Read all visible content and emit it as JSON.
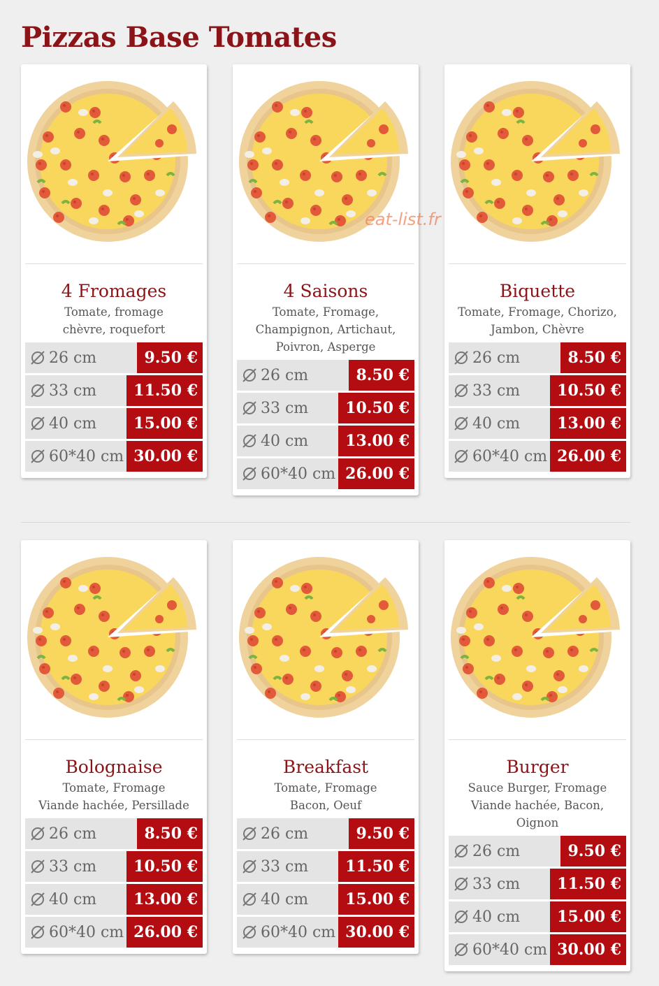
{
  "title": "Pizzas Base Tomates",
  "watermark": "eat-list.fr",
  "pizzas": [
    {
      "name": "4 Fromages",
      "description": [
        "Tomate, fromage",
        "chèvre, roquefort"
      ],
      "sizes": [
        {
          "size": "26 cm",
          "price": "9.50 €"
        },
        {
          "size": "33 cm",
          "price": "11.50 €"
        },
        {
          "size": "40 cm",
          "price": "15.00 €"
        },
        {
          "size": "60*40 cm",
          "price": "30.00 €"
        }
      ]
    },
    {
      "name": "4 Saisons",
      "description": [
        "Tomate, Fromage,",
        "Champignon, Artichaut,",
        "Poivron, Asperge"
      ],
      "sizes": [
        {
          "size": "26 cm",
          "price": "8.50 €"
        },
        {
          "size": "33 cm",
          "price": "10.50 €"
        },
        {
          "size": "40 cm",
          "price": "13.00 €"
        },
        {
          "size": "60*40 cm",
          "price": "26.00 €"
        }
      ]
    },
    {
      "name": "Biquette",
      "description": [
        "Tomate, Fromage, Chorizo,",
        "Jambon, Chèvre"
      ],
      "sizes": [
        {
          "size": "26 cm",
          "price": "8.50 €"
        },
        {
          "size": "33 cm",
          "price": "10.50 €"
        },
        {
          "size": "40 cm",
          "price": "13.00 €"
        },
        {
          "size": "60*40 cm",
          "price": "26.00 €"
        }
      ]
    },
    {
      "name": "Bolognaise",
      "description": [
        "Tomate, Fromage",
        "Viande hachée, Persillade"
      ],
      "sizes": [
        {
          "size": "26 cm",
          "price": "8.50 €"
        },
        {
          "size": "33 cm",
          "price": "10.50 €"
        },
        {
          "size": "40 cm",
          "price": "13.00 €"
        },
        {
          "size": "60*40 cm",
          "price": "26.00 €"
        }
      ]
    },
    {
      "name": "Breakfast",
      "description": [
        "Tomate, Fromage",
        "Bacon, Oeuf"
      ],
      "sizes": [
        {
          "size": "26 cm",
          "price": "9.50 €"
        },
        {
          "size": "33 cm",
          "price": "11.50 €"
        },
        {
          "size": "40 cm",
          "price": "15.00 €"
        },
        {
          "size": "60*40 cm",
          "price": "30.00 €"
        }
      ]
    },
    {
      "name": "Burger",
      "description": [
        "Sauce Burger, Fromage",
        "Viande hachée, Bacon,",
        "Oignon"
      ],
      "sizes": [
        {
          "size": "26 cm",
          "price": "9.50 €"
        },
        {
          "size": "33 cm",
          "price": "11.50 €"
        },
        {
          "size": "40 cm",
          "price": "15.00 €"
        },
        {
          "size": "60*40 cm",
          "price": "30.00 €"
        }
      ]
    }
  ]
}
